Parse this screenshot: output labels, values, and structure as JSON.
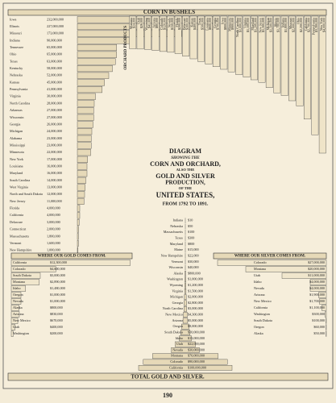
{
  "title": {
    "line1": "DIAGRAM",
    "line2": "SHOWING THE",
    "line3": "CORN AND ORCHARD,",
    "line4": "ALSO THE",
    "line5": "GOLD AND SILVER",
    "line6": "PRODUCTION,",
    "line7": "OF THE",
    "line8": "UNITED STATES,",
    "line9": "FROM 1792 TO 1891."
  },
  "chart_data": [
    {
      "type": "hbar",
      "title": "CORN IN BUSHELS",
      "color": "#e6d9b8",
      "categories": [
        "Iowa",
        "Illinois",
        "Missouri",
        "Indiana",
        "Tennessee",
        "Ohio",
        "Texas",
        "Kentucky",
        "Nebraska",
        "Kansas",
        "Pennsylvania",
        "Virginia",
        "North Carolina",
        "Arkansas",
        "Wisconsin",
        "Georgia",
        "Michigan",
        "Alabama",
        "Mississippi",
        "Minnesota",
        "New York",
        "Louisiana",
        "Maryland",
        "South Carolina",
        "West Virginia",
        "North and South Dakota",
        "New Jersey",
        "Florida",
        "California",
        "Delaware",
        "Connecticut",
        "Massachusetts",
        "Vermont",
        "New Hampshire"
      ],
      "values": [
        232000000,
        227000000,
        173000000,
        90000000,
        65000000,
        65000000,
        63000000,
        58000000,
        52000000,
        45000000,
        41000000,
        30000000,
        28000000,
        27000000,
        27000000,
        26000000,
        24000000,
        23000000,
        23000000,
        22000000,
        17000000,
        16000000,
        16000000,
        14000000,
        13000000,
        12000000,
        11000000,
        4000000,
        4000000,
        3000000,
        2000000,
        1800000,
        1600000,
        1000000
      ],
      "value_labels": [
        "232,000,000",
        "227,000,000",
        "173,000,000",
        "90,000,000",
        "65,000,000",
        "65,000,000",
        "63,000,000",
        "58,000,000",
        "52,000,000",
        "45,000,000",
        "41,000,000",
        "30,000,000",
        "28,000,000",
        "27,000,000",
        "27,000,000",
        "26,000,000",
        "24,000,000",
        "23,000,000",
        "23,000,000",
        "22,000,000",
        "17,000,000",
        "16,000,000",
        "16,000,000",
        "14,000,000",
        "13,000,000",
        "12,000,000",
        "11,000,000",
        "4,000,000",
        "4,000,000",
        "3,000,000",
        "2,000,000",
        "1,800,000",
        "1,600,000",
        "1,000,000"
      ],
      "xlim": [
        0,
        240000000
      ]
    },
    {
      "type": "vbar",
      "title": "ORCHARD PRODUCTS",
      "color": "#efe4c8",
      "categories": [
        "Montana",
        "Utah",
        "Wyoming",
        "Arizona",
        "Colorado",
        "Nevada",
        "Florida",
        "Delaware",
        "Kansas",
        "Texas",
        "Louisiana",
        "Georgia",
        "Iowa",
        "Minnesota",
        "North Carolina",
        "Virginia",
        "Maryland",
        "New Jersey",
        "Michigan",
        "Illinois",
        "Indiana",
        "Missouri",
        "Ohio",
        "California",
        "Pennsylvania",
        "New York"
      ],
      "values": [
        14000,
        26000,
        41000,
        80000,
        120000,
        150000,
        200000,
        300000,
        400000,
        500000,
        600000,
        700000,
        800000,
        900000,
        1000000,
        1100000,
        1200000,
        1300000,
        1500000,
        1700000,
        1800000,
        2000000,
        2200000,
        2700000,
        3300000,
        4000000
      ],
      "value_labels": [
        "$14,000",
        "$26,000",
        "$41,000",
        "$80,000",
        "$120,000",
        "$150,000",
        "$200,000",
        "$300,000",
        "$400,000",
        "$500,000",
        "$600,000",
        "$700,000",
        "$800,000",
        "$900,000",
        "$1,000,000",
        "$1,100,000",
        "$1,200,000",
        "$1,300,000",
        "$1,500,000",
        "$1,700,000",
        "$1,800,000",
        "$2,000,000",
        "$2,200,000",
        "$2,700,000",
        "$3,300,000",
        "$4,000,000"
      ],
      "ylim": [
        0,
        4000000
      ]
    },
    {
      "type": "hbar",
      "title": "WHERE OUR GOLD COMES FROM.",
      "color": "#f0e6cc",
      "categories": [
        "California",
        "Colorado",
        "South Dakota",
        "Montana",
        "Idaho",
        "Oregon",
        "Nevada",
        "Alaska",
        "Arizona",
        "New Mexico",
        "Utah",
        "Washington"
      ],
      "values": [
        12300000,
        4600000,
        3000000,
        2890000,
        1480000,
        1000000,
        1000000,
        800000,
        830000,
        670000,
        400000,
        200000
      ],
      "value_labels": [
        "$12,300,000",
        "$4,600,000",
        "$3,000,000",
        "$2,890,000",
        "$1,480,000",
        "$1,000,000",
        "$1,000,000",
        "$800,000",
        "$830,000",
        "$670,000",
        "$400,000",
        "$200,000"
      ],
      "xlim": [
        0,
        12500000
      ]
    },
    {
      "type": "hbar-right",
      "title": "WHERE OUR SILVER COMES FROM.",
      "color": "#f0e6cc",
      "categories": [
        "Colorado",
        "Montana",
        "Utah",
        "Idaho",
        "Nevada",
        "Arizona",
        "New Mexico",
        "California",
        "Washington",
        "South Dakota",
        "Oregon",
        "Alaska"
      ],
      "values": [
        27000000,
        20000000,
        11000000,
        4000000,
        4000000,
        1900000,
        1700000,
        1100000,
        300000,
        100000,
        60000,
        50000
      ],
      "value_labels": [
        "$27,000,000",
        "$20,000,000",
        "$11,000,000",
        "$4,000,000",
        "$4,000,000",
        "$1,900,000",
        "$1,700,000",
        "$1,100,000",
        "$300,000",
        "$100,000",
        "$60,000",
        "$50,000"
      ],
      "xlim": [
        0,
        28000000
      ]
    },
    {
      "type": "center",
      "color": "#e6d9b8",
      "categories": [
        "Indiana",
        "Nebraska",
        "Massachusetts",
        "Texas",
        "Maryland",
        "Maine",
        "New Hampshire",
        "Vermont",
        "Wisconsin",
        "Alaska",
        "Washington",
        "Wyoming",
        "Virginia",
        "Michigan",
        "Georgia",
        "North Carolina",
        "New Mexico",
        "Arizona",
        "Oregon",
        "South Dakota",
        "Idaho",
        "Utah",
        "Nevada",
        "Montana",
        "Colorado",
        "California"
      ],
      "values": [
        10,
        50,
        100,
        300,
        800,
        15000,
        22000,
        30000,
        40000,
        800000,
        1000000,
        1200000,
        1500000,
        2000000,
        2800000,
        3000000,
        4300000,
        5000000,
        8000000,
        10000000,
        13000000,
        22000000,
        30000000,
        70000000,
        90000000,
        100000000
      ],
      "value_labels": [
        "$10",
        "$50",
        "$100",
        "$300",
        "$800",
        "$15,000",
        "$22,000",
        "$30,000",
        "$40,000",
        "$800,000",
        "$1,000,000",
        "$1,200,000",
        "$1,500,000",
        "$2,000,000",
        "$2,800,000",
        "$3,000,000",
        "$4,300,000",
        "$5,000,000",
        "$8,000,000",
        "$10,000,000",
        "$13,000,000",
        "$22,000,000",
        "$30,000,000",
        "$70,000,000",
        "$90,000,000",
        "$100,000,000"
      ],
      "xlim": [
        0,
        100000000
      ]
    }
  ],
  "footer": {
    "total": "TOTAL GOLD AND SILVER.",
    "page": "190"
  }
}
